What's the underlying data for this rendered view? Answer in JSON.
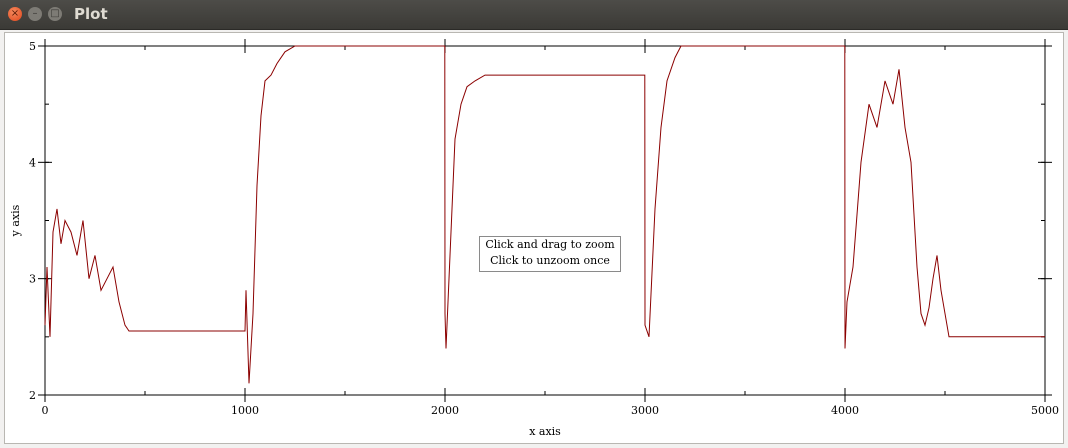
{
  "window": {
    "title": "Plot"
  },
  "window_controls": {
    "close": "×",
    "minimize": "–",
    "maximize": "□"
  },
  "zoom_hint": {
    "line1": "Click and drag to zoom",
    "line2": "Click to unzoom once"
  },
  "chart_data": {
    "type": "line",
    "xlabel": "x axis",
    "ylabel": "y axis",
    "xlim": [
      0,
      5000
    ],
    "ylim": [
      2,
      5
    ],
    "x_ticks": [
      0,
      1000,
      2000,
      3000,
      4000,
      5000
    ],
    "y_ticks": [
      2,
      3,
      4,
      5
    ],
    "grid": false,
    "color": "#8b0000",
    "series": [
      {
        "x": [
          0,
          10,
          25,
          40,
          60,
          80,
          100,
          130,
          160,
          190,
          220,
          250,
          280,
          310,
          340,
          370,
          400,
          420,
          1000,
          1005,
          1020,
          1040,
          1060,
          1080,
          1100,
          1130,
          1160,
          1200,
          1250,
          1300,
          1350,
          1400,
          1999,
          2000,
          2005,
          2020,
          2050,
          2080,
          2110,
          2150,
          2200,
          2250,
          2999,
          3000,
          3020,
          3050,
          3080,
          3110,
          3150,
          3180,
          3200,
          3250,
          3999,
          4000,
          4010,
          4040,
          4080,
          4120,
          4160,
          4200,
          4240,
          4270,
          4300,
          4330,
          4360,
          4380,
          4400,
          4420,
          4440,
          4460,
          4480,
          4500,
          4520,
          5000
        ],
        "y": [
          2.6,
          3.1,
          2.5,
          3.4,
          3.6,
          3.3,
          3.5,
          3.4,
          3.2,
          3.5,
          3.0,
          3.2,
          2.9,
          3.0,
          3.1,
          2.8,
          2.6,
          2.55,
          2.55,
          2.9,
          2.1,
          2.7,
          3.8,
          4.4,
          4.7,
          4.75,
          4.85,
          4.95,
          5.0,
          5.0,
          5.0,
          5.0,
          5.0,
          2.7,
          2.4,
          3.0,
          4.2,
          4.5,
          4.65,
          4.7,
          4.75,
          4.75,
          4.75,
          2.6,
          2.5,
          3.6,
          4.3,
          4.7,
          4.9,
          5.0,
          5.0,
          5.0,
          5.0,
          2.4,
          2.8,
          3.1,
          4.0,
          4.5,
          4.3,
          4.7,
          4.5,
          4.8,
          4.3,
          4.0,
          3.1,
          2.7,
          2.6,
          2.75,
          3.0,
          3.2,
          2.9,
          2.7,
          2.5,
          2.5
        ]
      }
    ]
  }
}
